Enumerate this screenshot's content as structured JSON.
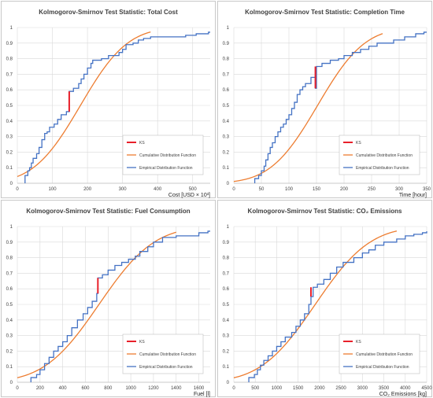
{
  "colors": {
    "ks": "#e8202a",
    "cdf": "#ed7d31",
    "edf": "#4472c4",
    "grid": "#d9d9d9",
    "border": "#c8c8c8"
  },
  "legend_labels": {
    "ks": "KS",
    "cdf": "Cumulative Distribution Function",
    "edf": "Empirical Distribution Function"
  },
  "chart_data": [
    {
      "type": "line",
      "title": "Kolmogorov-Smirnov Test Statistic: Total Cost",
      "xlabel": "Cost [USD × 10³]",
      "ylabel": "",
      "xlim": [
        0,
        550
      ],
      "ylim": [
        0,
        1
      ],
      "xticks": [
        0,
        100,
        200,
        300,
        400,
        500
      ],
      "yticks": [
        0,
        0.1,
        0.2,
        0.3,
        0.4,
        0.5,
        0.6,
        0.7,
        0.8,
        0.9,
        1
      ],
      "grid": true,
      "legend_position": "bottom-right",
      "cdf": {
        "mean": 180,
        "sd": 105,
        "x_range": [
          0,
          380
        ]
      },
      "edf": [
        [
          22,
          0
        ],
        [
          22,
          0.05
        ],
        [
          30,
          0.08
        ],
        [
          35,
          0.1
        ],
        [
          40,
          0.13
        ],
        [
          45,
          0.16
        ],
        [
          55,
          0.19
        ],
        [
          62,
          0.23
        ],
        [
          70,
          0.28
        ],
        [
          78,
          0.32
        ],
        [
          85,
          0.33
        ],
        [
          92,
          0.36
        ],
        [
          105,
          0.38
        ],
        [
          115,
          0.41
        ],
        [
          125,
          0.44
        ],
        [
          140,
          0.46
        ],
        [
          148,
          0.59
        ],
        [
          160,
          0.61
        ],
        [
          175,
          0.64
        ],
        [
          182,
          0.67
        ],
        [
          190,
          0.7
        ],
        [
          200,
          0.74
        ],
        [
          210,
          0.77
        ],
        [
          215,
          0.79
        ],
        [
          240,
          0.8
        ],
        [
          260,
          0.82
        ],
        [
          290,
          0.84
        ],
        [
          300,
          0.86
        ],
        [
          310,
          0.89
        ],
        [
          330,
          0.9
        ],
        [
          345,
          0.92
        ],
        [
          360,
          0.93
        ],
        [
          380,
          0.94
        ],
        [
          480,
          0.95
        ],
        [
          510,
          0.96
        ],
        [
          545,
          0.97
        ],
        [
          550,
          0.97
        ]
      ],
      "ks": {
        "x": 148,
        "y1": 0.46,
        "y2": 0.59
      }
    },
    {
      "type": "line",
      "title": "Kolmogorov-Smirnov Test Statistic: Completion Time",
      "xlabel": "Time [hour]",
      "ylabel": "",
      "xlim": [
        0,
        350
      ],
      "ylim": [
        0,
        1
      ],
      "xticks": [
        0,
        50,
        100,
        150,
        200,
        250,
        300,
        350
      ],
      "yticks": [
        0,
        0.1,
        0.2,
        0.3,
        0.4,
        0.5,
        0.6,
        0.7,
        0.8,
        0.9,
        1
      ],
      "grid": true,
      "legend_position": "bottom-right",
      "cdf": {
        "mean": 152,
        "sd": 67,
        "x_range": [
          0,
          270
        ]
      },
      "edf": [
        [
          38,
          0
        ],
        [
          38,
          0.03
        ],
        [
          45,
          0.05
        ],
        [
          50,
          0.08
        ],
        [
          55,
          0.11
        ],
        [
          58,
          0.15
        ],
        [
          62,
          0.19
        ],
        [
          66,
          0.23
        ],
        [
          70,
          0.26
        ],
        [
          75,
          0.3
        ],
        [
          80,
          0.33
        ],
        [
          85,
          0.36
        ],
        [
          90,
          0.38
        ],
        [
          95,
          0.41
        ],
        [
          100,
          0.44
        ],
        [
          105,
          0.48
        ],
        [
          110,
          0.52
        ],
        [
          115,
          0.57
        ],
        [
          120,
          0.6
        ],
        [
          125,
          0.62
        ],
        [
          130,
          0.64
        ],
        [
          140,
          0.68
        ],
        [
          148,
          0.61
        ],
        [
          150,
          0.75
        ],
        [
          160,
          0.77
        ],
        [
          175,
          0.79
        ],
        [
          190,
          0.8
        ],
        [
          200,
          0.82
        ],
        [
          215,
          0.84
        ],
        [
          230,
          0.86
        ],
        [
          245,
          0.88
        ],
        [
          260,
          0.9
        ],
        [
          290,
          0.92
        ],
        [
          310,
          0.94
        ],
        [
          330,
          0.96
        ],
        [
          345,
          0.97
        ],
        [
          350,
          0.97
        ]
      ],
      "ks": {
        "x": 148,
        "y1": 0.61,
        "y2": 0.75
      }
    },
    {
      "type": "line",
      "title": "Kolmogorov-Smirnov Test Statistic: Fuel Consumption",
      "xlabel": "Fuel [l]",
      "ylabel": "",
      "xlim": [
        0,
        1700
      ],
      "ylim": [
        0,
        1
      ],
      "xticks": [
        0,
        200,
        400,
        600,
        800,
        1000,
        1200,
        1400,
        1600
      ],
      "yticks": [
        0,
        0.1,
        0.2,
        0.3,
        0.4,
        0.5,
        0.6,
        0.7,
        0.8,
        0.9,
        1
      ],
      "grid": true,
      "legend_position": "bottom-right",
      "cdf": {
        "mean": 720,
        "sd": 380,
        "x_range": [
          0,
          1400
        ]
      },
      "edf": [
        [
          120,
          0
        ],
        [
          120,
          0.03
        ],
        [
          170,
          0.05
        ],
        [
          200,
          0.08
        ],
        [
          240,
          0.12
        ],
        [
          280,
          0.16
        ],
        [
          320,
          0.2
        ],
        [
          360,
          0.23
        ],
        [
          400,
          0.26
        ],
        [
          440,
          0.3
        ],
        [
          480,
          0.35
        ],
        [
          530,
          0.4
        ],
        [
          580,
          0.44
        ],
        [
          620,
          0.48
        ],
        [
          660,
          0.52
        ],
        [
          700,
          0.57
        ],
        [
          710,
          0.67
        ],
        [
          750,
          0.69
        ],
        [
          800,
          0.72
        ],
        [
          860,
          0.75
        ],
        [
          920,
          0.77
        ],
        [
          980,
          0.79
        ],
        [
          1040,
          0.81
        ],
        [
          1080,
          0.84
        ],
        [
          1150,
          0.87
        ],
        [
          1200,
          0.9
        ],
        [
          1280,
          0.93
        ],
        [
          1400,
          0.94
        ],
        [
          1600,
          0.96
        ],
        [
          1680,
          0.97
        ],
        [
          1700,
          0.97
        ]
      ],
      "ks": {
        "x": 710,
        "y1": 0.57,
        "y2": 0.67
      }
    },
    {
      "type": "line",
      "title": "Kolmogorov-Smirnov Test Statistic: CO₂ Emissions",
      "xlabel": "CO₂ Emissions [kg]",
      "ylabel": "",
      "xlim": [
        0,
        4500
      ],
      "ylim": [
        0,
        1
      ],
      "xticks": [
        0,
        500,
        1000,
        1500,
        2000,
        2500,
        3000,
        3500,
        4000,
        4500
      ],
      "yticks": [
        0,
        0.1,
        0.2,
        0.3,
        0.4,
        0.5,
        0.6,
        0.7,
        0.8,
        0.9,
        1
      ],
      "grid": true,
      "legend_position": "bottom-right",
      "cdf": {
        "mean": 1900,
        "sd": 1000,
        "x_range": [
          0,
          3800
        ]
      },
      "edf": [
        [
          350,
          0
        ],
        [
          350,
          0.03
        ],
        [
          480,
          0.05
        ],
        [
          550,
          0.08
        ],
        [
          620,
          0.11
        ],
        [
          700,
          0.14
        ],
        [
          800,
          0.17
        ],
        [
          900,
          0.2
        ],
        [
          1000,
          0.23
        ],
        [
          1100,
          0.26
        ],
        [
          1200,
          0.29
        ],
        [
          1350,
          0.32
        ],
        [
          1450,
          0.36
        ],
        [
          1550,
          0.4
        ],
        [
          1650,
          0.44
        ],
        [
          1750,
          0.5
        ],
        [
          1800,
          0.55
        ],
        [
          1850,
          0.61
        ],
        [
          1950,
          0.63
        ],
        [
          2100,
          0.66
        ],
        [
          2250,
          0.7
        ],
        [
          2400,
          0.74
        ],
        [
          2550,
          0.77
        ],
        [
          2800,
          0.8
        ],
        [
          3000,
          0.83
        ],
        [
          3150,
          0.85
        ],
        [
          3300,
          0.88
        ],
        [
          3500,
          0.9
        ],
        [
          3800,
          0.92
        ],
        [
          4000,
          0.94
        ],
        [
          4200,
          0.95
        ],
        [
          4400,
          0.96
        ],
        [
          4500,
          0.97
        ]
      ],
      "ks": {
        "x": 1800,
        "y1": 0.55,
        "y2": 0.61
      }
    }
  ]
}
